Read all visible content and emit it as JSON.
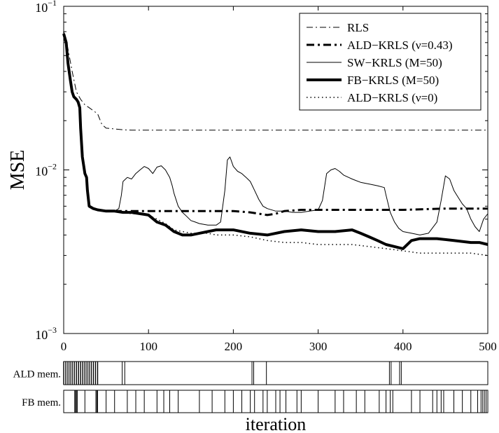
{
  "chart_data": [
    {
      "type": "line",
      "xlabel": "",
      "ylabel": "MSE",
      "xlim": [
        0,
        500
      ],
      "ylim": [
        0.001,
        0.1
      ],
      "yscale": "log",
      "grid": false,
      "legend_position": "top-right",
      "x_ticks": [
        0,
        100,
        200,
        300,
        400,
        500
      ],
      "x_tick_labels": [
        "0",
        "100",
        "200",
        "300",
        "400",
        "500"
      ],
      "y_ticks": [
        0.001,
        0.01,
        0.1
      ],
      "y_tick_labels": [
        {
          "base": "10",
          "exp": "−3"
        },
        {
          "base": "10",
          "exp": "−2"
        },
        {
          "base": "10",
          "exp": "−1"
        }
      ],
      "series": [
        {
          "name": "RLS",
          "style": "dashdot",
          "width": 1,
          "points": [
            [
              0,
              0.07
            ],
            [
              5,
              0.055
            ],
            [
              10,
              0.04
            ],
            [
              15,
              0.03
            ],
            [
              20,
              0.027
            ],
            [
              25,
              0.025
            ],
            [
              30,
              0.024
            ],
            [
              35,
              0.023
            ],
            [
              40,
              0.022
            ],
            [
              45,
              0.019
            ],
            [
              50,
              0.018
            ],
            [
              60,
              0.0178
            ],
            [
              70,
              0.0176
            ],
            [
              80,
              0.0175
            ],
            [
              100,
              0.0175
            ],
            [
              150,
              0.0175
            ],
            [
              200,
              0.0175
            ],
            [
              250,
              0.0175
            ],
            [
              300,
              0.0175
            ],
            [
              350,
              0.0175
            ],
            [
              400,
              0.0175
            ],
            [
              450,
              0.0175
            ],
            [
              500,
              0.0175
            ]
          ]
        },
        {
          "name": "ALD−KRLS (ν=0.43)",
          "style": "thickdashdot",
          "width": 3,
          "points": [
            [
              0,
              0.068
            ],
            [
              3,
              0.06
            ],
            [
              5,
              0.045
            ],
            [
              8,
              0.035
            ],
            [
              10,
              0.03
            ],
            [
              12,
              0.028
            ],
            [
              15,
              0.027
            ],
            [
              17,
              0.026
            ],
            [
              19,
              0.024
            ],
            [
              20,
              0.018
            ],
            [
              22,
              0.012
            ],
            [
              25,
              0.0095
            ],
            [
              27,
              0.009
            ],
            [
              28,
              0.0075
            ],
            [
              30,
              0.006
            ],
            [
              35,
              0.0058
            ],
            [
              40,
              0.0057
            ],
            [
              50,
              0.0056
            ],
            [
              60,
              0.0056
            ],
            [
              70,
              0.0056
            ],
            [
              80,
              0.0056
            ],
            [
              90,
              0.0056
            ],
            [
              100,
              0.0056
            ],
            [
              150,
              0.0056
            ],
            [
              200,
              0.0056
            ],
            [
              220,
              0.0055
            ],
            [
              240,
              0.0053
            ],
            [
              250,
              0.0054
            ],
            [
              260,
              0.0056
            ],
            [
              280,
              0.0057
            ],
            [
              300,
              0.0057
            ],
            [
              350,
              0.0057
            ],
            [
              400,
              0.0057
            ],
            [
              450,
              0.0058
            ],
            [
              500,
              0.0058
            ]
          ]
        },
        {
          "name": "SW−KRLS (M=50)",
          "style": "solid",
          "width": 1,
          "points": [
            [
              0,
              0.07
            ],
            [
              3,
              0.06
            ],
            [
              5,
              0.045
            ],
            [
              8,
              0.035
            ],
            [
              10,
              0.03
            ],
            [
              15,
              0.027
            ],
            [
              17,
              0.026
            ],
            [
              19,
              0.024
            ],
            [
              20,
              0.018
            ],
            [
              22,
              0.012
            ],
            [
              25,
              0.0095
            ],
            [
              27,
              0.009
            ],
            [
              28,
              0.0075
            ],
            [
              30,
              0.006
            ],
            [
              35,
              0.0058
            ],
            [
              40,
              0.0057
            ],
            [
              50,
              0.0056
            ],
            [
              60,
              0.0056
            ],
            [
              65,
              0.0058
            ],
            [
              68,
              0.007
            ],
            [
              70,
              0.0085
            ],
            [
              75,
              0.009
            ],
            [
              80,
              0.0088
            ],
            [
              85,
              0.0095
            ],
            [
              90,
              0.01
            ],
            [
              95,
              0.0105
            ],
            [
              100,
              0.0102
            ],
            [
              105,
              0.0095
            ],
            [
              110,
              0.0104
            ],
            [
              115,
              0.0106
            ],
            [
              120,
              0.01
            ],
            [
              125,
              0.009
            ],
            [
              128,
              0.008
            ],
            [
              130,
              0.0072
            ],
            [
              135,
              0.006
            ],
            [
              140,
              0.0055
            ],
            [
              145,
              0.0052
            ],
            [
              150,
              0.0049
            ],
            [
              155,
              0.0048
            ],
            [
              160,
              0.0047
            ],
            [
              170,
              0.0046
            ],
            [
              180,
              0.0046
            ],
            [
              185,
              0.0048
            ],
            [
              190,
              0.0075
            ],
            [
              193,
              0.0115
            ],
            [
              196,
              0.012
            ],
            [
              200,
              0.0105
            ],
            [
              205,
              0.0098
            ],
            [
              210,
              0.0095
            ],
            [
              215,
              0.009
            ],
            [
              220,
              0.0085
            ],
            [
              225,
              0.0075
            ],
            [
              230,
              0.0066
            ],
            [
              235,
              0.006
            ],
            [
              240,
              0.0058
            ],
            [
              250,
              0.0056
            ],
            [
              260,
              0.0056
            ],
            [
              270,
              0.0055
            ],
            [
              280,
              0.0055
            ],
            [
              290,
              0.0056
            ],
            [
              300,
              0.0057
            ],
            [
              305,
              0.0065
            ],
            [
              310,
              0.0095
            ],
            [
              315,
              0.01
            ],
            [
              320,
              0.0102
            ],
            [
              325,
              0.0098
            ],
            [
              330,
              0.0093
            ],
            [
              340,
              0.0088
            ],
            [
              350,
              0.0084
            ],
            [
              360,
              0.0082
            ],
            [
              370,
              0.008
            ],
            [
              378,
              0.0078
            ],
            [
              380,
              0.007
            ],
            [
              385,
              0.0055
            ],
            [
              390,
              0.0048
            ],
            [
              395,
              0.0044
            ],
            [
              400,
              0.0042
            ],
            [
              410,
              0.0041
            ],
            [
              420,
              0.004
            ],
            [
              430,
              0.0041
            ],
            [
              440,
              0.0048
            ],
            [
              445,
              0.0065
            ],
            [
              450,
              0.0092
            ],
            [
              455,
              0.0088
            ],
            [
              460,
              0.0075
            ],
            [
              465,
              0.0068
            ],
            [
              470,
              0.0062
            ],
            [
              475,
              0.0058
            ],
            [
              480,
              0.005
            ],
            [
              485,
              0.0045
            ],
            [
              490,
              0.0042
            ],
            [
              495,
              0.005
            ],
            [
              500,
              0.0054
            ]
          ]
        },
        {
          "name": "FB−KRLS (M=50)",
          "style": "thick",
          "width": 4,
          "points": [
            [
              0,
              0.068
            ],
            [
              3,
              0.06
            ],
            [
              5,
              0.045
            ],
            [
              8,
              0.035
            ],
            [
              10,
              0.03
            ],
            [
              12,
              0.028
            ],
            [
              15,
              0.027
            ],
            [
              17,
              0.026
            ],
            [
              19,
              0.024
            ],
            [
              20,
              0.018
            ],
            [
              22,
              0.012
            ],
            [
              25,
              0.0095
            ],
            [
              27,
              0.009
            ],
            [
              28,
              0.0075
            ],
            [
              30,
              0.006
            ],
            [
              35,
              0.0058
            ],
            [
              40,
              0.0057
            ],
            [
              50,
              0.0056
            ],
            [
              60,
              0.0056
            ],
            [
              70,
              0.0055
            ],
            [
              80,
              0.0055
            ],
            [
              90,
              0.0054
            ],
            [
              100,
              0.0053
            ],
            [
              110,
              0.0048
            ],
            [
              120,
              0.0046
            ],
            [
              130,
              0.0042
            ],
            [
              140,
              0.004
            ],
            [
              150,
              0.004
            ],
            [
              160,
              0.0041
            ],
            [
              170,
              0.0042
            ],
            [
              180,
              0.0043
            ],
            [
              200,
              0.0043
            ],
            [
              220,
              0.0041
            ],
            [
              240,
              0.004
            ],
            [
              260,
              0.0042
            ],
            [
              280,
              0.0043
            ],
            [
              300,
              0.0042
            ],
            [
              320,
              0.0042
            ],
            [
              340,
              0.0043
            ],
            [
              350,
              0.0041
            ],
            [
              360,
              0.0039
            ],
            [
              370,
              0.0037
            ],
            [
              380,
              0.0035
            ],
            [
              390,
              0.0034
            ],
            [
              400,
              0.0033
            ],
            [
              410,
              0.0037
            ],
            [
              420,
              0.0038
            ],
            [
              440,
              0.0038
            ],
            [
              460,
              0.0037
            ],
            [
              480,
              0.0036
            ],
            [
              490,
              0.0036
            ],
            [
              500,
              0.0035
            ]
          ]
        },
        {
          "name": "ALD−KRLS (ν=0)",
          "style": "dotted",
          "width": 1.5,
          "points": [
            [
              0,
              0.07
            ],
            [
              3,
              0.06
            ],
            [
              5,
              0.045
            ],
            [
              8,
              0.035
            ],
            [
              10,
              0.03
            ],
            [
              12,
              0.028
            ],
            [
              15,
              0.027
            ],
            [
              17,
              0.026
            ],
            [
              19,
              0.024
            ],
            [
              20,
              0.018
            ],
            [
              22,
              0.012
            ],
            [
              25,
              0.0095
            ],
            [
              27,
              0.009
            ],
            [
              28,
              0.0075
            ],
            [
              30,
              0.006
            ],
            [
              35,
              0.0058
            ],
            [
              40,
              0.0057
            ],
            [
              50,
              0.0056
            ],
            [
              60,
              0.0056
            ],
            [
              70,
              0.0055
            ],
            [
              80,
              0.0054
            ],
            [
              90,
              0.0054
            ],
            [
              100,
              0.0053
            ],
            [
              110,
              0.005
            ],
            [
              120,
              0.0047
            ],
            [
              130,
              0.0043
            ],
            [
              140,
              0.0042
            ],
            [
              150,
              0.0041
            ],
            [
              160,
              0.0041
            ],
            [
              170,
              0.0041
            ],
            [
              180,
              0.004
            ],
            [
              200,
              0.004
            ],
            [
              220,
              0.0039
            ],
            [
              240,
              0.0037
            ],
            [
              260,
              0.0036
            ],
            [
              280,
              0.0036
            ],
            [
              300,
              0.0035
            ],
            [
              320,
              0.0035
            ],
            [
              340,
              0.0035
            ],
            [
              360,
              0.0034
            ],
            [
              380,
              0.0033
            ],
            [
              400,
              0.0032
            ],
            [
              420,
              0.0031
            ],
            [
              440,
              0.0031
            ],
            [
              460,
              0.0031
            ],
            [
              480,
              0.0031
            ],
            [
              500,
              0.003
            ]
          ]
        }
      ]
    },
    {
      "type": "event",
      "ylabel": "ALD mem.",
      "xlim": [
        0,
        500
      ],
      "dense_ranges": [
        [
          0,
          42
        ]
      ],
      "events": [
        69,
        72,
        222,
        224,
        239,
        384,
        386,
        396,
        398
      ]
    },
    {
      "type": "event",
      "ylabel": "FB mem.",
      "xlabel": "iteration",
      "xlim": [
        0,
        500
      ],
      "events": [
        13,
        14,
        15,
        16,
        25,
        38,
        39,
        40,
        50,
        60,
        75,
        85,
        95,
        110,
        118,
        125,
        135,
        160,
        175,
        190,
        200,
        210,
        220,
        225,
        235,
        240,
        250,
        255,
        262,
        275,
        280,
        300,
        320,
        330,
        345,
        355,
        372,
        380,
        385,
        388,
        410,
        420,
        435,
        440,
        445,
        448,
        460,
        470,
        480,
        488,
        492,
        494,
        496,
        498
      ]
    }
  ]
}
